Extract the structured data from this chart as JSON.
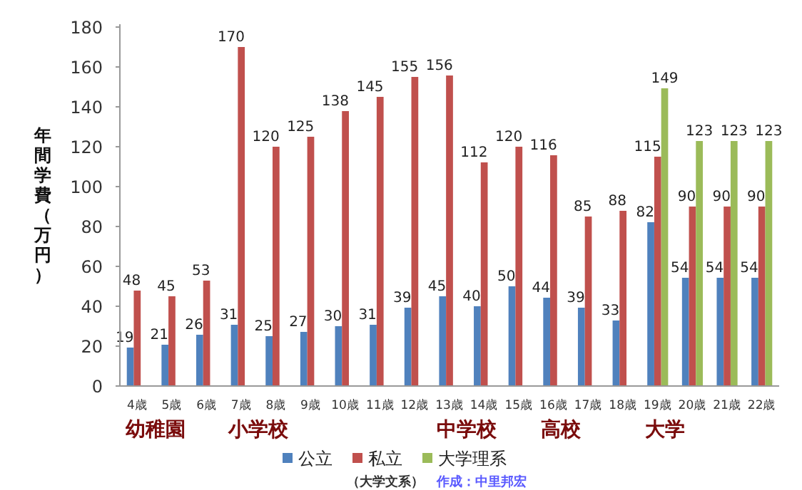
{
  "chart_data": {
    "type": "bar",
    "ylabel": "年間学費（万円）",
    "categories": [
      "4歳",
      "5歳",
      "6歳",
      "7歳",
      "8歳",
      "9歳",
      "10歳",
      "11歳",
      "12歳",
      "13歳",
      "14歳",
      "15歳",
      "16歳",
      "17歳",
      "18歳",
      "19歳",
      "20歳",
      "21歳",
      "22歳"
    ],
    "series": [
      {
        "name": "公立",
        "color": "#4f81bd",
        "values": [
          19,
          21,
          26,
          31,
          25,
          27,
          30,
          31,
          39,
          45,
          40,
          50,
          44,
          39,
          33,
          82,
          54,
          54,
          54
        ]
      },
      {
        "name": "私立",
        "color": "#c0504d",
        "values": [
          48,
          45,
          53,
          170,
          120,
          125,
          138,
          145,
          155,
          156,
          112,
          120,
          116,
          85,
          88,
          115,
          90,
          90,
          90
        ]
      },
      {
        "name": "大学理系",
        "color": "#9bbb59",
        "values": [
          null,
          null,
          null,
          null,
          null,
          null,
          null,
          null,
          null,
          null,
          null,
          null,
          null,
          null,
          null,
          149,
          123,
          123,
          123
        ]
      }
    ],
    "ylim": [
      0,
      180
    ],
    "yticks": [
      0,
      20,
      40,
      60,
      80,
      100,
      120,
      140,
      160,
      180
    ],
    "data_labels": true,
    "legend": "bottom",
    "grid": false,
    "annotations": [
      "幼稚園",
      "小学校",
      "中学校",
      "高校",
      "大学",
      "（大学文系）",
      "作成：中里邦宏"
    ]
  }
}
